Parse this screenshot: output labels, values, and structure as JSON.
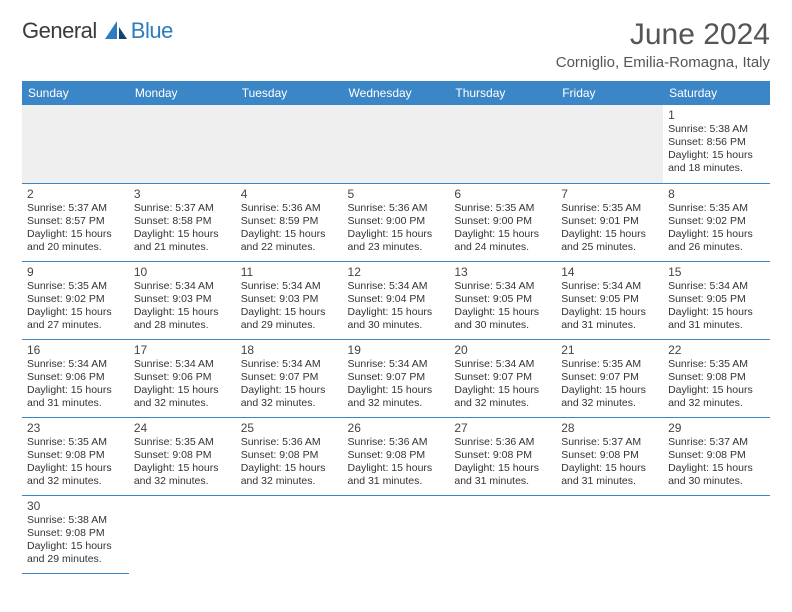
{
  "brand": {
    "part1": "General",
    "part2": "Blue"
  },
  "title": "June 2024",
  "location": "Corniglio, Emilia-Romagna, Italy",
  "colors": {
    "header_bg": "#3b86c6",
    "header_text": "#ffffff",
    "border": "#3b86c6",
    "brand_accent": "#2f7bbf",
    "text": "#333333"
  },
  "dayHeaders": [
    "Sunday",
    "Monday",
    "Tuesday",
    "Wednesday",
    "Thursday",
    "Friday",
    "Saturday"
  ],
  "weeks": [
    [
      null,
      null,
      null,
      null,
      null,
      null,
      {
        "n": "1",
        "rise": "5:38 AM",
        "set": "8:56 PM",
        "dl": "15 hours and 18 minutes."
      }
    ],
    [
      {
        "n": "2",
        "rise": "5:37 AM",
        "set": "8:57 PM",
        "dl": "15 hours and 20 minutes."
      },
      {
        "n": "3",
        "rise": "5:37 AM",
        "set": "8:58 PM",
        "dl": "15 hours and 21 minutes."
      },
      {
        "n": "4",
        "rise": "5:36 AM",
        "set": "8:59 PM",
        "dl": "15 hours and 22 minutes."
      },
      {
        "n": "5",
        "rise": "5:36 AM",
        "set": "9:00 PM",
        "dl": "15 hours and 23 minutes."
      },
      {
        "n": "6",
        "rise": "5:35 AM",
        "set": "9:00 PM",
        "dl": "15 hours and 24 minutes."
      },
      {
        "n": "7",
        "rise": "5:35 AM",
        "set": "9:01 PM",
        "dl": "15 hours and 25 minutes."
      },
      {
        "n": "8",
        "rise": "5:35 AM",
        "set": "9:02 PM",
        "dl": "15 hours and 26 minutes."
      }
    ],
    [
      {
        "n": "9",
        "rise": "5:35 AM",
        "set": "9:02 PM",
        "dl": "15 hours and 27 minutes."
      },
      {
        "n": "10",
        "rise": "5:34 AM",
        "set": "9:03 PM",
        "dl": "15 hours and 28 minutes."
      },
      {
        "n": "11",
        "rise": "5:34 AM",
        "set": "9:03 PM",
        "dl": "15 hours and 29 minutes."
      },
      {
        "n": "12",
        "rise": "5:34 AM",
        "set": "9:04 PM",
        "dl": "15 hours and 30 minutes."
      },
      {
        "n": "13",
        "rise": "5:34 AM",
        "set": "9:05 PM",
        "dl": "15 hours and 30 minutes."
      },
      {
        "n": "14",
        "rise": "5:34 AM",
        "set": "9:05 PM",
        "dl": "15 hours and 31 minutes."
      },
      {
        "n": "15",
        "rise": "5:34 AM",
        "set": "9:05 PM",
        "dl": "15 hours and 31 minutes."
      }
    ],
    [
      {
        "n": "16",
        "rise": "5:34 AM",
        "set": "9:06 PM",
        "dl": "15 hours and 31 minutes."
      },
      {
        "n": "17",
        "rise": "5:34 AM",
        "set": "9:06 PM",
        "dl": "15 hours and 32 minutes."
      },
      {
        "n": "18",
        "rise": "5:34 AM",
        "set": "9:07 PM",
        "dl": "15 hours and 32 minutes."
      },
      {
        "n": "19",
        "rise": "5:34 AM",
        "set": "9:07 PM",
        "dl": "15 hours and 32 minutes."
      },
      {
        "n": "20",
        "rise": "5:34 AM",
        "set": "9:07 PM",
        "dl": "15 hours and 32 minutes."
      },
      {
        "n": "21",
        "rise": "5:35 AM",
        "set": "9:07 PM",
        "dl": "15 hours and 32 minutes."
      },
      {
        "n": "22",
        "rise": "5:35 AM",
        "set": "9:08 PM",
        "dl": "15 hours and 32 minutes."
      }
    ],
    [
      {
        "n": "23",
        "rise": "5:35 AM",
        "set": "9:08 PM",
        "dl": "15 hours and 32 minutes."
      },
      {
        "n": "24",
        "rise": "5:35 AM",
        "set": "9:08 PM",
        "dl": "15 hours and 32 minutes."
      },
      {
        "n": "25",
        "rise": "5:36 AM",
        "set": "9:08 PM",
        "dl": "15 hours and 32 minutes."
      },
      {
        "n": "26",
        "rise": "5:36 AM",
        "set": "9:08 PM",
        "dl": "15 hours and 31 minutes."
      },
      {
        "n": "27",
        "rise": "5:36 AM",
        "set": "9:08 PM",
        "dl": "15 hours and 31 minutes."
      },
      {
        "n": "28",
        "rise": "5:37 AM",
        "set": "9:08 PM",
        "dl": "15 hours and 31 minutes."
      },
      {
        "n": "29",
        "rise": "5:37 AM",
        "set": "9:08 PM",
        "dl": "15 hours and 30 minutes."
      }
    ],
    [
      {
        "n": "30",
        "rise": "5:38 AM",
        "set": "9:08 PM",
        "dl": "15 hours and 29 minutes."
      },
      null,
      null,
      null,
      null,
      null,
      null
    ]
  ],
  "labels": {
    "sunrise": "Sunrise:",
    "sunset": "Sunset:",
    "daylight": "Daylight:"
  }
}
